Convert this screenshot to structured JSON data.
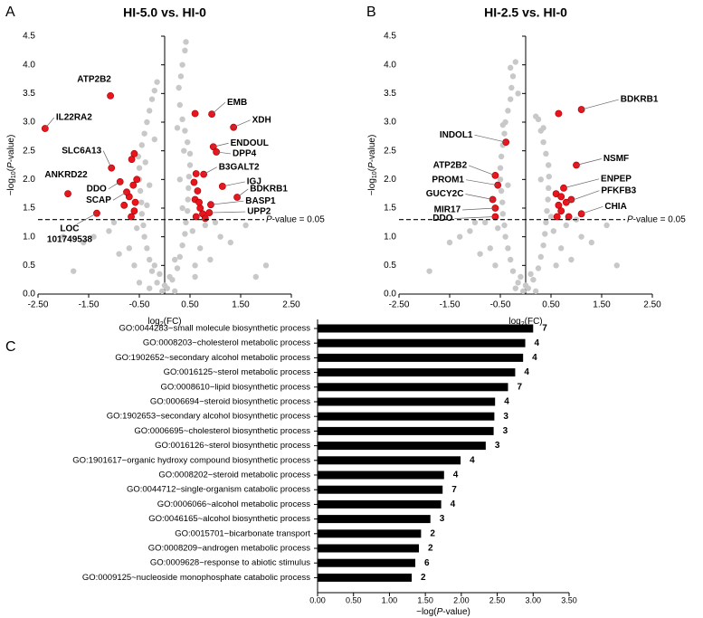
{
  "chart_data": [
    {
      "type": "scatter",
      "panel": "A",
      "title": "HI-5.0 vs. HI-0",
      "x_label": [
        "log",
        "2",
        "(FC)"
      ],
      "y_label": [
        "−log",
        "10",
        "(",
        "P",
        "-value)"
      ],
      "xlim": [
        -2.5,
        2.5
      ],
      "ylim": [
        0,
        4.5
      ],
      "xticks": [
        {
          "value": -2.5,
          "label": "-2.50"
        },
        {
          "value": -1.5,
          "label": "-1.50"
        },
        {
          "value": -0.5,
          "label": "-0.50"
        },
        {
          "value": 0.5,
          "label": "0.50"
        },
        {
          "value": 1.5,
          "label": "1.50"
        },
        {
          "value": 2.5,
          "label": "2.50"
        }
      ],
      "yticks": [
        {
          "value": 0,
          "label": "0.0"
        },
        0.5,
        {
          "value": 1,
          "label": "1.0"
        },
        1.5,
        {
          "value": 2,
          "label": "2.0"
        },
        2.5,
        {
          "value": 3,
          "label": "3.0"
        },
        3.5,
        {
          "value": 4,
          "label": "4.0"
        },
        4.5
      ],
      "threshold": 1.3,
      "threshold_label": [
        "P",
        "-value = 0.05"
      ],
      "series": [
        {
          "color": "#c8c8c8",
          "x": [
            -0.05,
            0.05,
            -0.15,
            0.15,
            -0.25,
            0.25,
            -0.3,
            0.3,
            -0.35,
            0.35,
            -0.4,
            0.4,
            -0.42,
            0.42,
            -0.45,
            0.45,
            -0.46,
            0.46,
            -0.48,
            0.47,
            -0.5,
            0.48,
            -0.5,
            0.5,
            -0.52,
            0.5,
            -0.45,
            0.45,
            -0.4,
            0.4,
            -0.35,
            0.35,
            -0.3,
            0.3,
            -0.25,
            0.28,
            -0.2,
            0.32,
            0.35,
            0.4,
            0.42,
            -0.15,
            0.2,
            -0.2,
            0.1,
            -0.1,
            0.6,
            -0.6,
            0.7,
            -0.7,
            0.9,
            -0.9,
            1.1,
            -1.1,
            1.3,
            -1.4,
            1.6,
            -1.6,
            2.0,
            -2.0,
            1.8,
            -1.8,
            0.55,
            -0.55,
            0.6,
            -0.5,
            0.35,
            -0.35,
            0.3,
            -0.3,
            0.38,
            -0.38,
            0.0,
            0.2,
            -0.3,
            0.25,
            -0.2,
            1.0,
            -1.0,
            0.8
          ],
          "y": [
            0.05,
            0.1,
            0.2,
            0.25,
            0.4,
            0.45,
            0.6,
            0.65,
            0.8,
            0.85,
            1.0,
            1.05,
            1.2,
            1.25,
            1.4,
            1.45,
            1.6,
            1.65,
            1.8,
            1.85,
            2.0,
            2.05,
            2.2,
            2.25,
            2.4,
            2.45,
            2.6,
            2.65,
            2.8,
            2.85,
            3.0,
            3.05,
            3.2,
            3.3,
            3.4,
            3.6,
            3.55,
            3.8,
            4.0,
            4.25,
            4.4,
            3.7,
            0.6,
            0.5,
            0.3,
            0.35,
            0.5,
            0.5,
            0.8,
            0.8,
            0.6,
            0.7,
            1.0,
            1.1,
            0.9,
            1.0,
            1.2,
            0.9,
            0.5,
            1.0,
            0.3,
            0.4,
            1.1,
            1.15,
            0.3,
            0.2,
            1.5,
            1.55,
            2.0,
            1.9,
            2.5,
            2.3,
            0.15,
            0.05,
            0.1,
            2.9,
            2.7,
            1.25,
            1.25,
            1.2
          ]
        },
        {
          "color": "#e8141e",
          "x": [
            -0.6,
            -0.65,
            -0.55,
            -0.62,
            -0.7,
            -0.58,
            -0.8,
            -0.6,
            -0.66,
            0.6,
            0.62,
            0.65,
            0.6,
            0.7,
            0.75,
            0.62,
            0.8,
            0.68,
            0.58
          ],
          "y": [
            2.45,
            2.35,
            2.0,
            1.9,
            1.7,
            1.6,
            1.55,
            1.45,
            1.35,
            3.15,
            2.1,
            1.8,
            1.65,
            1.5,
            1.4,
            1.35,
            1.32,
            1.6,
            1.95
          ]
        },
        {
          "color": "#e8141e",
          "x": [
            -1.07,
            -2.36,
            -1.05,
            -1.91,
            -0.88,
            -0.75,
            -1.34,
            0.93,
            1.36,
            0.96,
            1.02,
            0.77,
            1.14,
            1.43,
            0.91,
            0.88
          ],
          "y": [
            3.46,
            2.89,
            2.2,
            1.75,
            1.96,
            1.78,
            1.41,
            3.14,
            2.91,
            2.57,
            2.48,
            2.09,
            1.88,
            1.69,
            1.56,
            1.42
          ],
          "labels": [
            "ATP2B2",
            "IL22RA2",
            "SLC6A13",
            "ANKRD22",
            "DDO",
            "SCAP",
            [
              "LOC",
              "101749538"
            ],
            "EMB",
            "XDH",
            "ENDOUL",
            "DPP4",
            "B3GALT2",
            "IGJ",
            "BDKRB1",
            "BASP1",
            "UPP2"
          ]
        }
      ]
    },
    {
      "type": "scatter",
      "panel": "B",
      "title": "HI-2.5 vs. HI-0",
      "x_label": [
        "log",
        "2",
        "(FC)"
      ],
      "y_label": [
        "−log",
        "10",
        "(",
        "P",
        "-value)"
      ],
      "xlim": [
        -2.5,
        2.5
      ],
      "ylim": [
        0,
        4.5
      ],
      "xticks": [
        {
          "value": -2.5,
          "label": "-2.50"
        },
        {
          "value": -1.5,
          "label": "-1.50"
        },
        {
          "value": -0.5,
          "label": "-0.50"
        },
        {
          "value": 0.5,
          "label": "0.50"
        },
        {
          "value": 1.5,
          "label": "1.50"
        },
        {
          "value": 2.5,
          "label": "2.50"
        }
      ],
      "yticks": [
        {
          "value": 0,
          "label": "0.0"
        },
        0.5,
        {
          "value": 1,
          "label": "1.0"
        },
        1.5,
        {
          "value": 2,
          "label": "2.0"
        },
        2.5,
        {
          "value": 3,
          "label": "3.0"
        },
        3.5,
        {
          "value": 4,
          "label": "4.0"
        },
        4.5
      ],
      "threshold": 1.3,
      "threshold_label": [
        "P",
        "-value = 0.05"
      ],
      "series": [
        {
          "color": "#c8c8c8",
          "x": [
            -0.05,
            0.05,
            -0.15,
            0.15,
            -0.25,
            0.25,
            -0.3,
            0.3,
            -0.35,
            0.35,
            -0.4,
            0.38,
            -0.42,
            0.4,
            -0.45,
            0.42,
            -0.46,
            0.44,
            -0.48,
            0.45,
            -0.5,
            0.46,
            -0.5,
            0.45,
            -0.48,
            0.4,
            -0.45,
            0.35,
            -0.42,
            0.3,
            -0.4,
            0.25,
            -0.35,
            -0.3,
            -0.28,
            -0.25,
            -0.2,
            0.2,
            -0.1,
            0.1,
            0.6,
            -0.6,
            0.7,
            -0.7,
            0.9,
            -0.9,
            1.1,
            -1.1,
            1.3,
            -1.3,
            1.6,
            -1.5,
            1.8,
            -1.9,
            0.55,
            -0.55,
            0.0,
            0.2,
            -0.2,
            0.3,
            -0.35,
            0.8,
            -0.8,
            1.0,
            -1.0,
            -0.3,
            0.35,
            -0.45,
            0.5,
            -0.15
          ],
          "y": [
            0.05,
            0.1,
            0.2,
            0.25,
            0.4,
            0.45,
            0.6,
            0.65,
            0.8,
            0.85,
            1.0,
            1.05,
            1.2,
            1.25,
            1.4,
            1.45,
            1.6,
            1.65,
            1.8,
            1.85,
            2.0,
            2.05,
            2.2,
            2.25,
            2.4,
            2.45,
            2.6,
            2.65,
            2.8,
            2.85,
            3.0,
            3.05,
            3.2,
            3.4,
            3.6,
            3.8,
            4.05,
            3.1,
            0.3,
            0.35,
            0.5,
            0.5,
            0.8,
            0.8,
            0.6,
            0.7,
            1.0,
            1.1,
            0.9,
            1.0,
            1.2,
            0.9,
            0.5,
            0.4,
            1.1,
            1.15,
            0.15,
            0.05,
            0.1,
            2.0,
            1.9,
            1.2,
            1.25,
            1.3,
            1.25,
            3.95,
            2.9,
            2.95,
            1.35,
            3.5
          ]
        },
        {
          "color": "#e8141e",
          "x": [
            0.65,
            0.6,
            0.65,
            0.7,
            0.62,
            0.85,
            0.9,
            0.7
          ],
          "y": [
            3.15,
            1.75,
            1.55,
            1.45,
            1.35,
            1.35,
            1.65,
            1.7
          ]
        },
        {
          "color": "#e8141e",
          "x": [
            1.1,
            -0.39,
            1.0,
            0.75,
            0.8,
            1.1,
            -0.6,
            -0.55,
            -0.65,
            -0.6,
            -0.6
          ],
          "y": [
            3.22,
            2.65,
            2.25,
            1.85,
            1.6,
            1.4,
            2.07,
            1.9,
            1.65,
            1.5,
            1.35
          ],
          "labels": [
            "BDKRB1",
            "INDOL1",
            "NSMF",
            "ENPEP",
            "PFKFB3",
            "CHIA",
            "ATP2B2",
            "PROM1",
            "GUCY2C",
            "MIR17",
            "DDO"
          ]
        }
      ]
    },
    {
      "type": "bar",
      "panel": "C",
      "color": "#000000",
      "x_label": [
        "−log(",
        "P",
        "-value)"
      ],
      "xlim": [
        0,
        3.5
      ],
      "xticks": [
        {
          "value": 0,
          "label": "0.00"
        },
        {
          "value": 0.5,
          "label": "0.50"
        },
        {
          "value": 1,
          "label": "1.00"
        },
        {
          "value": 1.5,
          "label": "1.50"
        },
        {
          "value": 2,
          "label": "2.00"
        },
        {
          "value": 2.5,
          "label": "2.50"
        },
        {
          "value": 3,
          "label": "3.00"
        },
        {
          "value": 3.5,
          "label": "3.50"
        }
      ],
      "categories": [
        "GO:0044283~small molecule biosynthetic process",
        "GO:0008203~cholesterol metabolic process",
        "GO:1902652~secondary alcohol metabolic process",
        "GO:0016125~sterol metabolic process",
        "GO:0008610~lipid biosynthetic process",
        "GO:0006694~steroid biosynthetic process",
        "GO:1902653~secondary alcohol biosynthetic process",
        "GO:0006695~cholesterol biosynthetic process",
        "GO:0016126~sterol biosynthetic process",
        "GO:1901617~organic hydroxy compound biosynthetic process",
        "GO:0008202~steroid metabolic process",
        "GO:0044712~single-organism catabolic process",
        "GO:0006066~alcohol metabolic process",
        "GO:0046165~alcohol biosynthetic process",
        "GO:0015701~bicarbonate transport",
        "GO:0008209~androgen metabolic process",
        "GO:0009628~response to abiotic stimulus",
        "GO:0009125~nucleoside monophosphate catabolic process"
      ],
      "values": [
        3.0,
        2.89,
        2.86,
        2.75,
        2.65,
        2.47,
        2.46,
        2.45,
        2.34,
        1.99,
        1.76,
        1.74,
        1.72,
        1.57,
        1.44,
        1.41,
        1.36,
        1.31
      ],
      "gene_counts": [
        7,
        4,
        4,
        4,
        7,
        4,
        3,
        3,
        3,
        4,
        4,
        7,
        4,
        3,
        2,
        2,
        6,
        2
      ]
    }
  ]
}
